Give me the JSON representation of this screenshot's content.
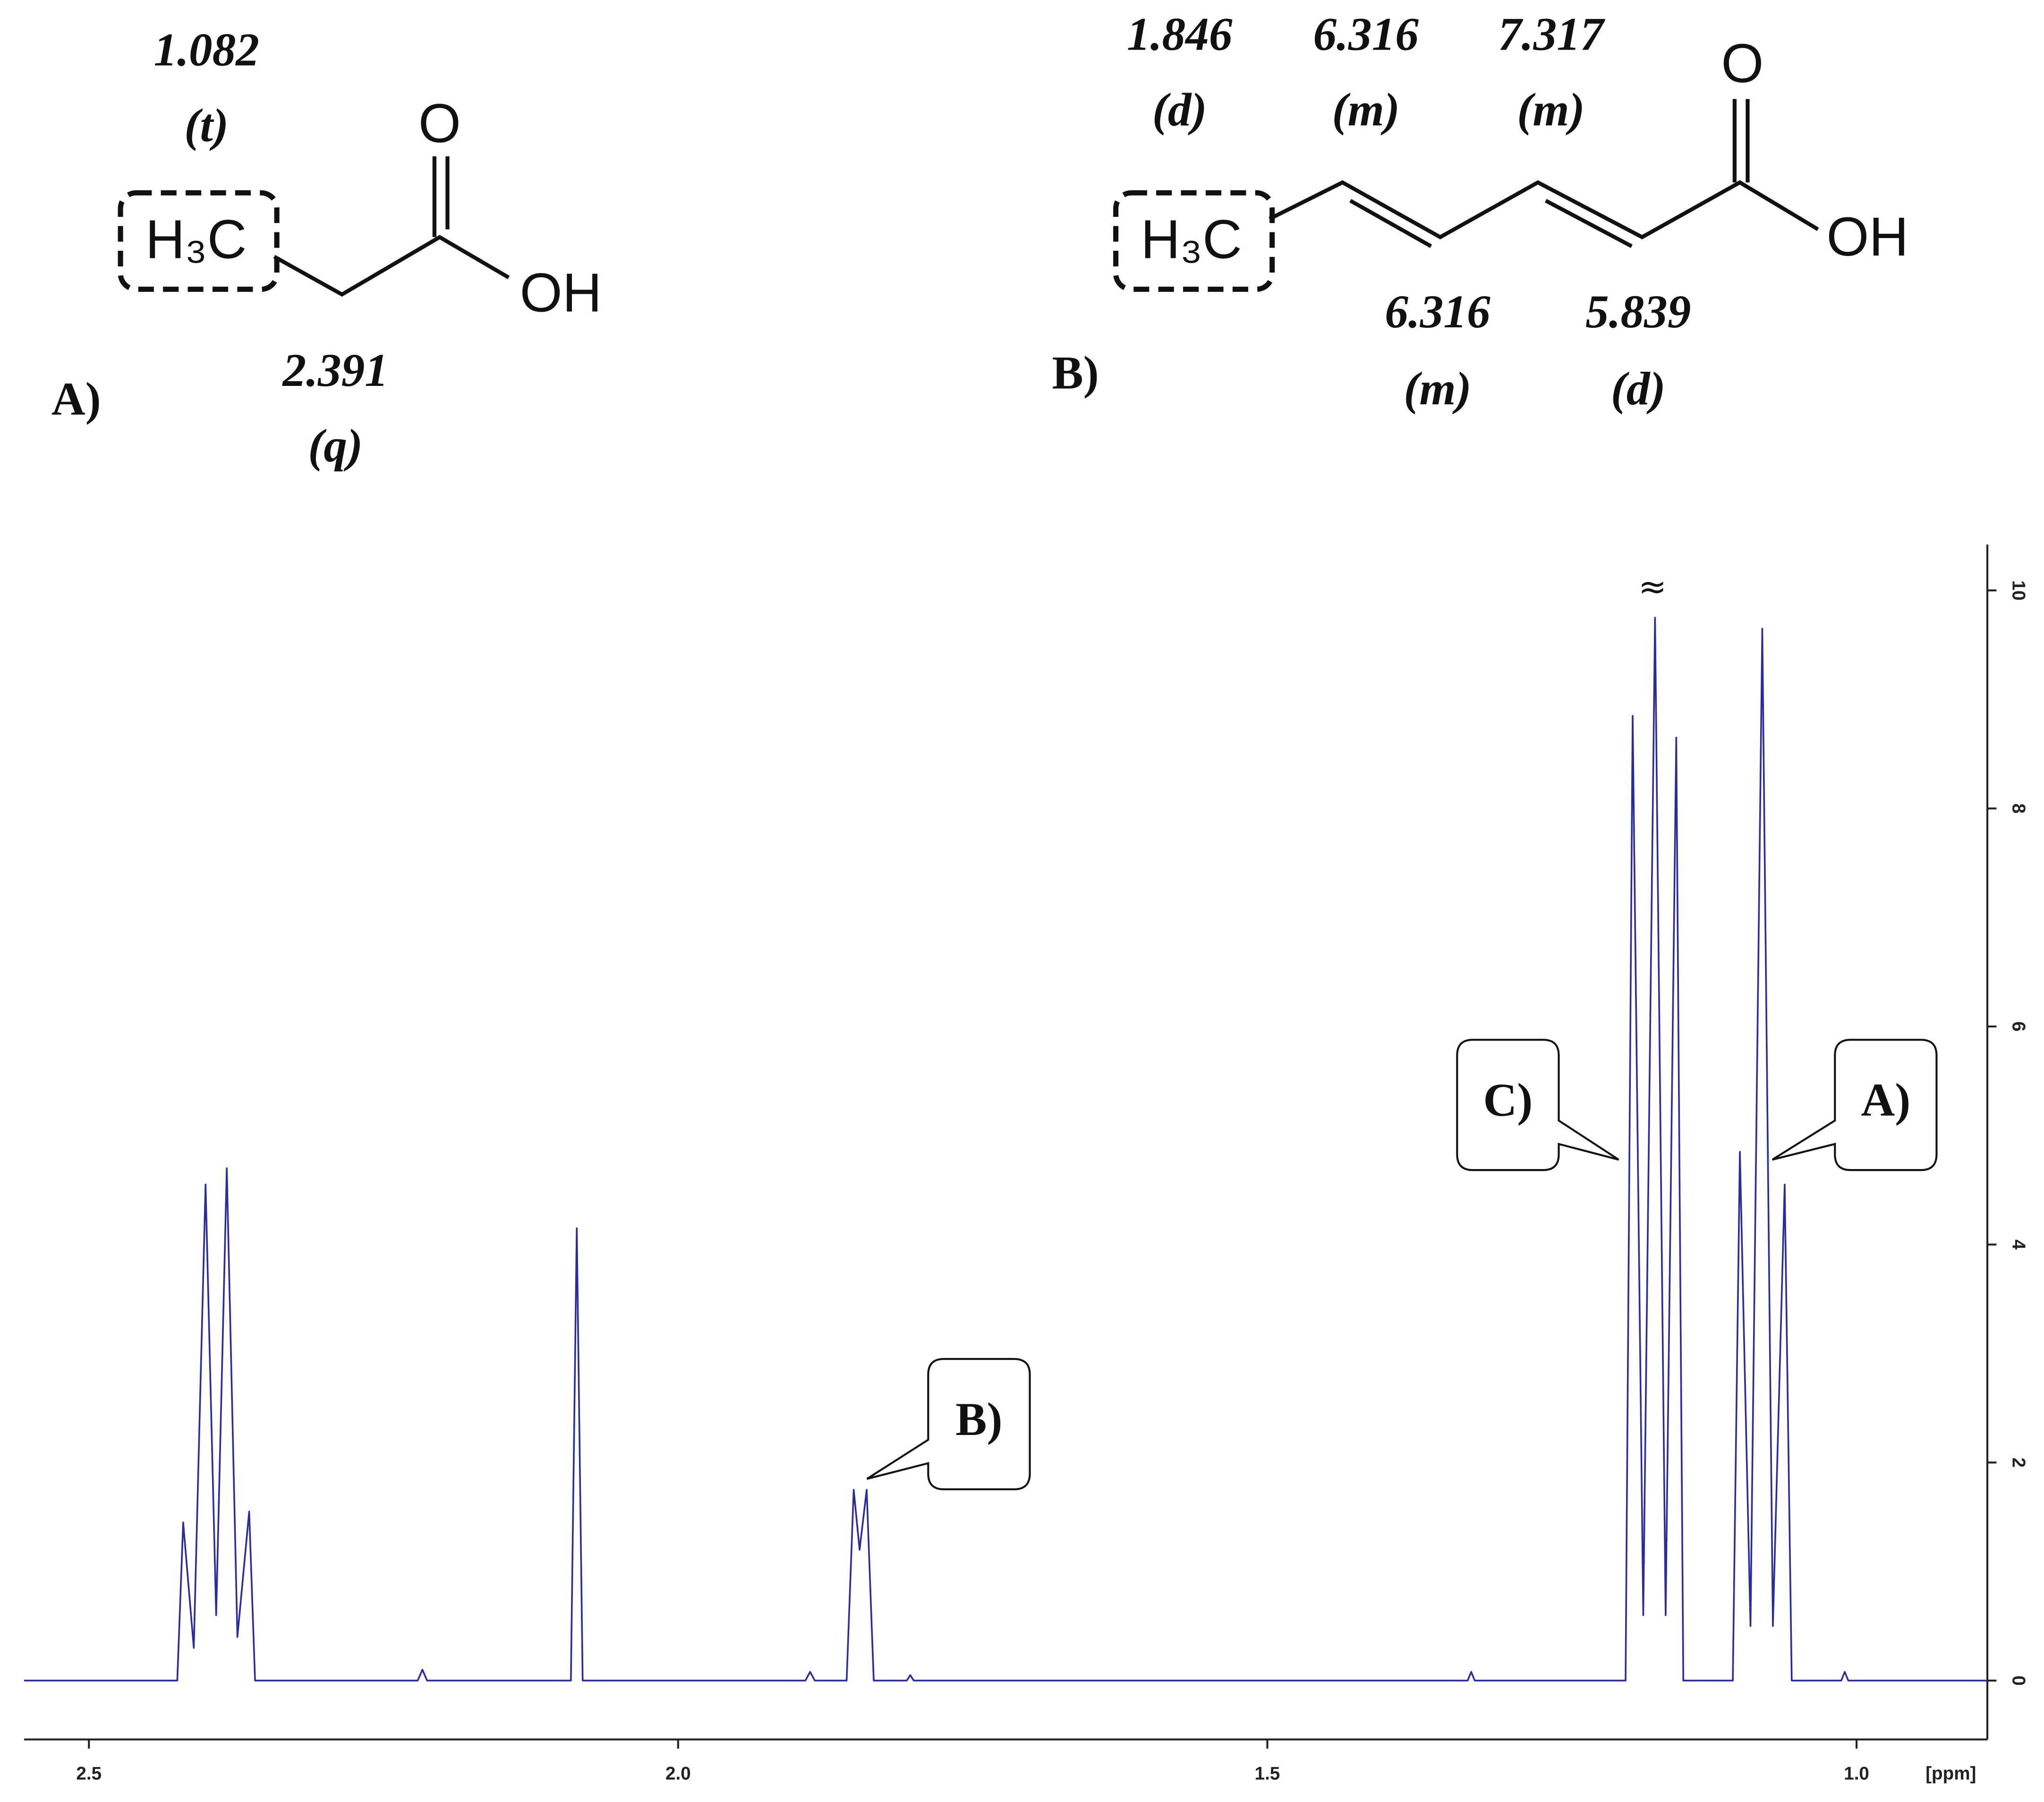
{
  "chart_data": {
    "type": "line",
    "x": [
      2.555,
      2.425,
      2.42,
      2.411,
      2.401,
      2.392,
      2.383,
      2.374,
      2.364,
      2.359,
      2.221,
      2.217,
      2.213,
      2.091,
      2.086,
      2.081,
      1.892,
      1.888,
      1.884,
      1.857,
      1.851,
      1.846,
      1.84,
      1.834,
      1.806,
      1.803,
      1.8,
      1.33,
      1.327,
      1.324,
      1.196,
      1.19,
      1.181,
      1.171,
      1.162,
      1.153,
      1.147,
      1.105,
      1.099,
      1.09,
      1.08,
      1.071,
      1.061,
      1.055,
      1.013,
      1.01,
      1.007,
      0.889
    ],
    "values": [
      0,
      0,
      1.45,
      0.3,
      4.55,
      0.6,
      4.7,
      0.4,
      1.55,
      0,
      0,
      0.1,
      0,
      0,
      4.15,
      0,
      0,
      0.08,
      0,
      0,
      1.75,
      1.2,
      1.75,
      0,
      0,
      0.05,
      0,
      0,
      0.08,
      0,
      0,
      8.85,
      0.6,
      9.75,
      0.6,
      8.65,
      0,
      0,
      4.85,
      0.5,
      9.65,
      0.5,
      4.55,
      0,
      0,
      0.08,
      0,
      0
    ],
    "color": "#2b2b9a",
    "xlim": [
      2.555,
      0.889
    ],
    "xticks": [
      2.5,
      {
        "value": 2,
        "label": "2.0"
      },
      1.5,
      {
        "value": 1,
        "label": "1.0"
      }
    ],
    "x_label": "[ppm]",
    "ylim": [
      -0.54,
      10.42
    ],
    "yticks": [
      0,
      2,
      4,
      6,
      8,
      10
    ],
    "annotations": [
      "≈",
      "C)",
      "A)",
      "B)"
    ]
  },
  "structures": [
    {
      "label": "A)",
      "atoms": [
        "H₃C",
        "O",
        "OH"
      ],
      "shifts": [
        {
          "ppm": 1.082,
          "mult": "(t)"
        },
        {
          "ppm": 2.391,
          "mult": "(q)"
        }
      ]
    },
    {
      "label": "B)",
      "atoms": [
        "H₃C",
        "O",
        "OH"
      ],
      "shifts": [
        {
          "ppm": 1.846,
          "mult": "(d)"
        },
        {
          "ppm": 6.316,
          "mult": "(m)"
        },
        {
          "ppm": 7.317,
          "mult": "(m)"
        },
        {
          "ppm": 6.316,
          "mult": "(m)"
        },
        {
          "ppm": 5.839,
          "mult": "(d)"
        }
      ]
    }
  ]
}
